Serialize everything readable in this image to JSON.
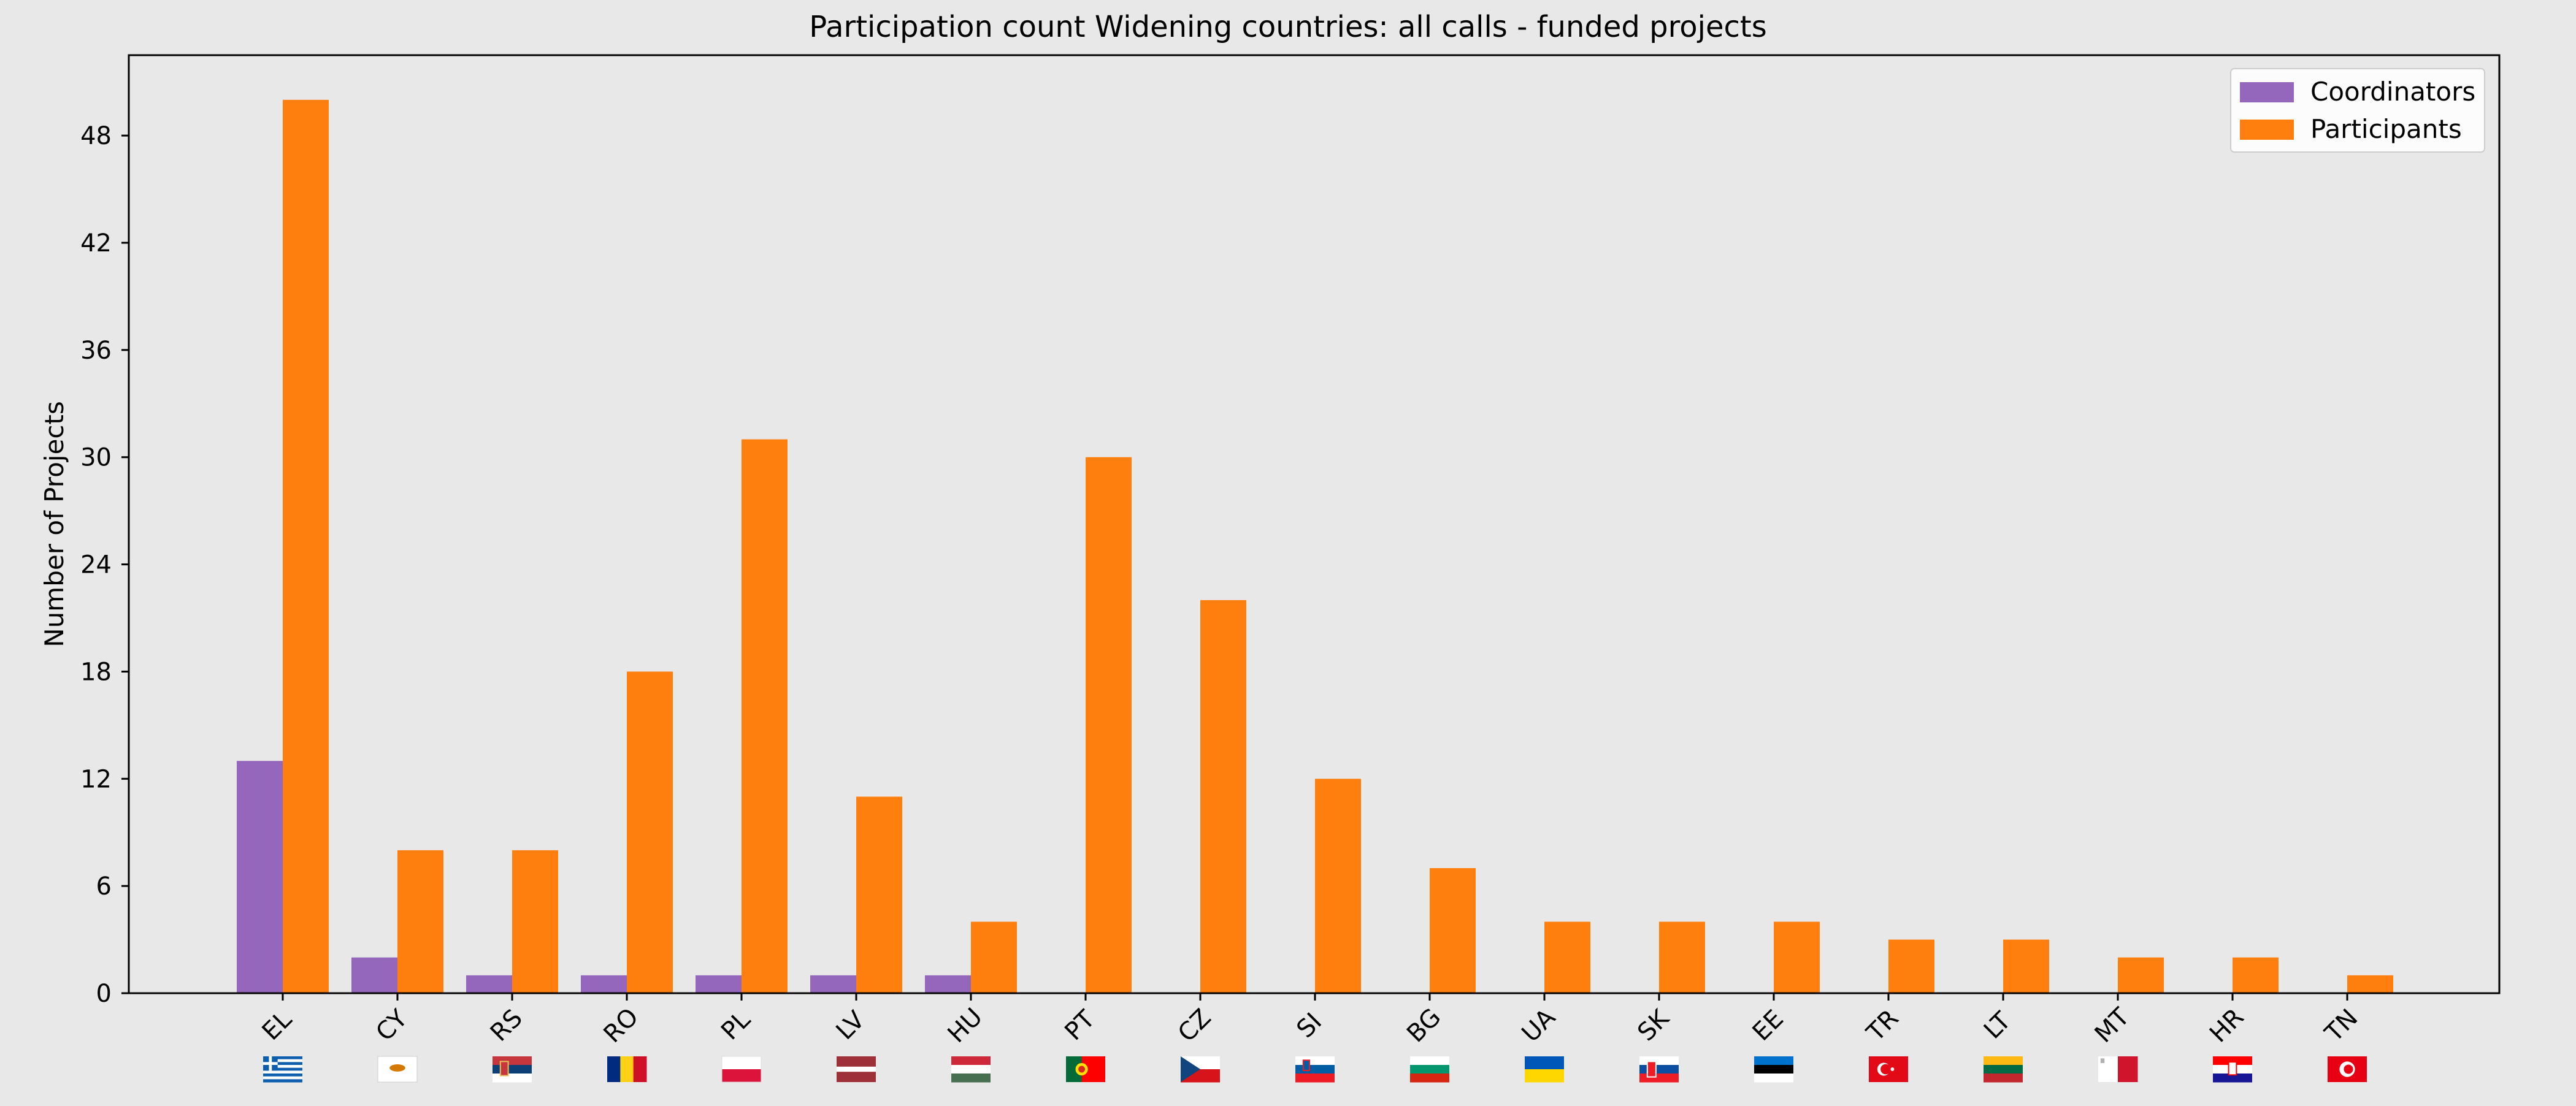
{
  "chart_data": {
    "type": "bar",
    "title": "Participation count Widening countries: all calls - funded projects",
    "xlabel": "",
    "ylabel": "Number of Projects",
    "categories": [
      "EL",
      "CY",
      "RS",
      "RO",
      "PL",
      "LV",
      "HU",
      "PT",
      "CZ",
      "SI",
      "BG",
      "UA",
      "SK",
      "EE",
      "TR",
      "LT",
      "MT",
      "HR",
      "TN"
    ],
    "series": [
      {
        "name": "Coordinators",
        "color": "#9467bd",
        "values": [
          13,
          2,
          1,
          1,
          1,
          1,
          1,
          0,
          0,
          0,
          0,
          0,
          0,
          0,
          0,
          0,
          0,
          0,
          0
        ]
      },
      {
        "name": "Participants",
        "color": "#ff7f0e",
        "values": [
          50,
          8,
          8,
          18,
          31,
          11,
          4,
          30,
          22,
          12,
          7,
          4,
          4,
          4,
          3,
          3,
          2,
          2,
          1
        ]
      }
    ],
    "ylim": [
      0,
      52.5
    ],
    "yticks": [
      0,
      6,
      12,
      18,
      24,
      30,
      36,
      42,
      48
    ],
    "grid": false,
    "legend_position": "top-right",
    "x_tick_rotation": -45,
    "flag_icons": [
      "greece-flag-icon",
      "cyprus-flag-icon",
      "serbia-flag-icon",
      "romania-flag-icon",
      "poland-flag-icon",
      "latvia-flag-icon",
      "hungary-flag-icon",
      "portugal-flag-icon",
      "czechia-flag-icon",
      "slovenia-flag-icon",
      "bulgaria-flag-icon",
      "ukraine-flag-icon",
      "slovakia-flag-icon",
      "estonia-flag-icon",
      "turkey-flag-icon",
      "lithuania-flag-icon",
      "malta-flag-icon",
      "croatia-flag-icon",
      "tunisia-flag-icon"
    ]
  }
}
